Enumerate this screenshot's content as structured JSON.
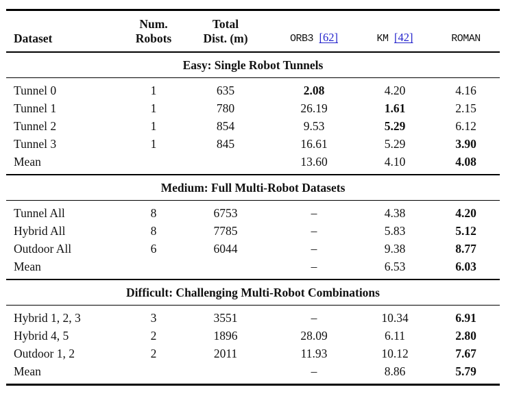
{
  "colors": {
    "citation_link_blue": "#2424cc",
    "text": "#111111",
    "rule": "#000000",
    "background": "#ffffff"
  },
  "table": {
    "column_keys": [
      "dataset",
      "num-robots",
      "total-dist",
      "orb3",
      "km",
      "roman"
    ],
    "columns": [
      {
        "lines": [
          "Dataset"
        ]
      },
      {
        "lines": [
          "Num.",
          "Robots"
        ]
      },
      {
        "lines": [
          "Total",
          "Dist. (m)"
        ]
      },
      {
        "label": "ORB3",
        "cite": "[62]"
      },
      {
        "label": "KM",
        "cite": "[42]"
      },
      {
        "label": "ROMAN"
      }
    ],
    "sections": [
      {
        "title": "Easy: Single Robot Tunnels",
        "rows": [
          {
            "cells": [
              {
                "t": "Tunnel 0"
              },
              {
                "t": "1"
              },
              {
                "t": "635"
              },
              {
                "t": "2.08",
                "b": true
              },
              {
                "t": "4.20"
              },
              {
                "t": "4.16"
              }
            ]
          },
          {
            "cells": [
              {
                "t": "Tunnel 1"
              },
              {
                "t": "1"
              },
              {
                "t": "780"
              },
              {
                "t": "26.19"
              },
              {
                "t": "1.61",
                "b": true
              },
              {
                "t": "2.15"
              }
            ]
          },
          {
            "cells": [
              {
                "t": "Tunnel 2"
              },
              {
                "t": "1"
              },
              {
                "t": "854"
              },
              {
                "t": "9.53"
              },
              {
                "t": "5.29",
                "b": true
              },
              {
                "t": "6.12"
              }
            ]
          },
          {
            "cells": [
              {
                "t": "Tunnel 3"
              },
              {
                "t": "1"
              },
              {
                "t": "845"
              },
              {
                "t": "16.61"
              },
              {
                "t": "5.29"
              },
              {
                "t": "3.90",
                "b": true
              }
            ]
          },
          {
            "cells": [
              {
                "t": "Mean"
              },
              {
                "t": ""
              },
              {
                "t": ""
              },
              {
                "t": "13.60"
              },
              {
                "t": "4.10"
              },
              {
                "t": "4.08",
                "b": true
              }
            ]
          }
        ]
      },
      {
        "title": "Medium: Full Multi-Robot Datasets",
        "rows": [
          {
            "cells": [
              {
                "t": "Tunnel All"
              },
              {
                "t": "8"
              },
              {
                "t": "6753"
              },
              {
                "t": "–"
              },
              {
                "t": "4.38"
              },
              {
                "t": "4.20",
                "b": true
              }
            ]
          },
          {
            "cells": [
              {
                "t": "Hybrid All"
              },
              {
                "t": "8"
              },
              {
                "t": "7785"
              },
              {
                "t": "–"
              },
              {
                "t": "5.83"
              },
              {
                "t": "5.12",
                "b": true
              }
            ]
          },
          {
            "cells": [
              {
                "t": "Outdoor All"
              },
              {
                "t": "6"
              },
              {
                "t": "6044"
              },
              {
                "t": "–"
              },
              {
                "t": "9.38"
              },
              {
                "t": "8.77",
                "b": true
              }
            ]
          },
          {
            "cells": [
              {
                "t": "Mean"
              },
              {
                "t": ""
              },
              {
                "t": ""
              },
              {
                "t": "–"
              },
              {
                "t": "6.53"
              },
              {
                "t": "6.03",
                "b": true
              }
            ]
          }
        ]
      },
      {
        "title": "Difficult: Challenging Multi-Robot Combinations",
        "rows": [
          {
            "cells": [
              {
                "t": "Hybrid 1, 2, 3"
              },
              {
                "t": "3"
              },
              {
                "t": "3551"
              },
              {
                "t": "–"
              },
              {
                "t": "10.34"
              },
              {
                "t": "6.91",
                "b": true
              }
            ]
          },
          {
            "cells": [
              {
                "t": "Hybrid 4, 5"
              },
              {
                "t": "2"
              },
              {
                "t": "1896"
              },
              {
                "t": "28.09"
              },
              {
                "t": "6.11"
              },
              {
                "t": "2.80",
                "b": true
              }
            ]
          },
          {
            "cells": [
              {
                "t": "Outdoor 1, 2"
              },
              {
                "t": "2"
              },
              {
                "t": "2011"
              },
              {
                "t": "11.93"
              },
              {
                "t": "10.12"
              },
              {
                "t": "7.67",
                "b": true
              }
            ]
          },
          {
            "cells": [
              {
                "t": "Mean"
              },
              {
                "t": ""
              },
              {
                "t": ""
              },
              {
                "t": "–"
              },
              {
                "t": "8.86"
              },
              {
                "t": "5.79",
                "b": true
              }
            ]
          }
        ]
      }
    ]
  }
}
